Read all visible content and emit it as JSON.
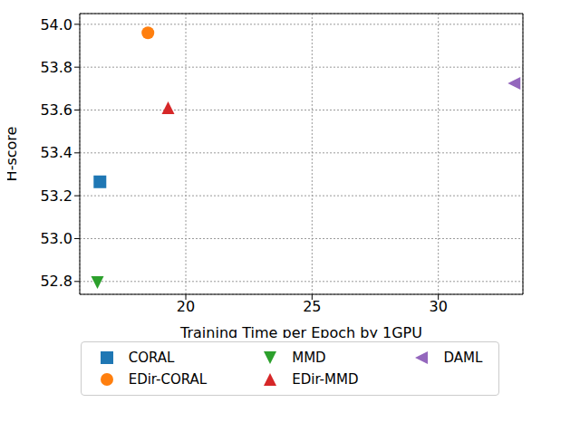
{
  "chart_data": {
    "type": "scatter",
    "x_label": "Training Time per Epoch by 1GPU",
    "y_label": "H-score",
    "xlim": [
      15.8,
      33.35
    ],
    "ylim": [
      52.74,
      54.05
    ],
    "xticks": [
      20,
      25,
      30
    ],
    "yticks": [
      52.8,
      {
        "value": 53,
        "label": "53.0"
      },
      53.2,
      53.4,
      53.6,
      53.8,
      {
        "value": 54,
        "label": "54.0"
      }
    ],
    "grid": true,
    "legend": "bottom",
    "series": [
      {
        "name": "CORAL",
        "color": "#1f77b4",
        "marker": "square",
        "x": [
          16.6
        ],
        "values": [
          53.265
        ]
      },
      {
        "name": "EDir-CORAL",
        "color": "#ff7f0e",
        "marker": "circle",
        "x": [
          18.5
        ],
        "values": [
          53.96
        ]
      },
      {
        "name": "MMD",
        "color": "#2ca02c",
        "marker": "triangle_down",
        "x": [
          16.5
        ],
        "values": [
          52.795
        ]
      },
      {
        "name": "EDir-MMD",
        "color": "#d62728",
        "marker": "triangle_up",
        "x": [
          19.3
        ],
        "values": [
          53.61
        ]
      },
      {
        "name": "DAML",
        "color": "#9467bd",
        "marker": "triangle_left",
        "x": [
          33.0
        ],
        "values": [
          53.725
        ]
      }
    ]
  }
}
